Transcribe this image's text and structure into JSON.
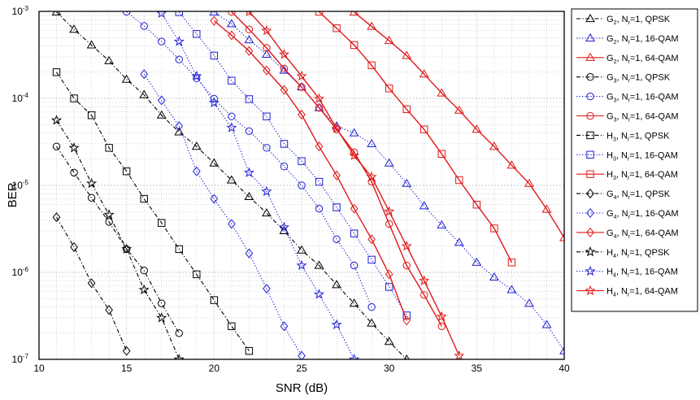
{
  "chart_data": {
    "type": "line",
    "title": "",
    "xlabel": "SNR (dB)",
    "ylabel": "BER",
    "xlim": [
      10,
      40
    ],
    "ylim": [
      1e-07,
      0.001
    ],
    "yscale": "log",
    "grid": true,
    "legend_position": "outside-right",
    "x_ticks": [
      "10",
      "15",
      "20",
      "25",
      "30",
      "35",
      "40"
    ],
    "y_ticks": [
      {
        "base": "10",
        "exp": "-7"
      },
      {
        "base": "10",
        "exp": "-6"
      },
      {
        "base": "10",
        "exp": "-5"
      },
      {
        "base": "10",
        "exp": "-4"
      },
      {
        "base": "10",
        "exp": "-3"
      }
    ],
    "series": [
      {
        "name": "G2, Nr=1, QPSK",
        "label": {
          "pre": "G",
          "sub1": "2",
          "mid": ", N",
          "sub2": "r",
          "post": "=1, QPSK"
        },
        "color": "#000000",
        "marker": "triangle",
        "dash": "dashdot",
        "x": [
          11,
          12,
          13,
          14,
          15,
          16,
          17,
          18,
          19,
          20,
          21,
          22,
          23,
          24,
          25,
          26,
          27,
          28,
          29,
          30,
          31
        ],
        "y": [
          0.00098,
          0.00062,
          0.00041,
          0.00027,
          0.000165,
          0.00011,
          6.4e-05,
          4.1e-05,
          2.8e-05,
          1.8e-05,
          1.15e-05,
          7.4e-06,
          4.8e-06,
          3e-06,
          1.8e-06,
          1.2e-06,
          7.2e-07,
          4.4e-07,
          2.6e-07,
          1.6e-07,
          1e-07
        ]
      },
      {
        "name": "G2, Nr=1, 16-QAM",
        "label": {
          "pre": "G",
          "sub1": "2",
          "mid": ", N",
          "sub2": "r",
          "post": "=1, 16-QAM"
        },
        "color": "#1f1fd6",
        "marker": "triangle",
        "dash": "dotted",
        "x": [
          20,
          21,
          22,
          23,
          24,
          25,
          26,
          27,
          28,
          29,
          30,
          31,
          32,
          33,
          34,
          35,
          36,
          37,
          38,
          39,
          40
        ],
        "y": [
          0.00098,
          0.00072,
          0.00047,
          0.00032,
          0.00021,
          0.000135,
          7.8e-05,
          4.8e-05,
          4e-05,
          3e-05,
          1.8e-05,
          1.05e-05,
          5.8e-06,
          3.5e-06,
          2.2e-06,
          1.3e-06,
          8.8e-07,
          6.3e-07,
          4.4e-07,
          2.5e-07,
          1.25e-07
        ]
      },
      {
        "name": "G2, Nr=1, 64-QAM",
        "label": {
          "pre": "G",
          "sub1": "2",
          "mid": ", N",
          "sub2": "r",
          "post": "=1, 64-QAM"
        },
        "color": "#e01818",
        "marker": "triangle",
        "dash": "solid",
        "x": [
          28,
          29,
          30,
          31,
          32,
          33,
          34,
          35,
          36,
          37,
          38,
          39,
          40
        ],
        "y": [
          0.00098,
          0.00067,
          0.00046,
          0.00031,
          0.00019,
          0.000115,
          7.3e-05,
          4.4e-05,
          2.8e-05,
          1.7e-05,
          1.05e-05,
          5.3e-06,
          2.5e-06
        ]
      },
      {
        "name": "G3, Nr=1, QPSK",
        "label": {
          "pre": "G",
          "sub1": "3",
          "mid": ", N",
          "sub2": "r",
          "post": "=1, QPSK"
        },
        "color": "#000000",
        "marker": "circle",
        "dash": "dashdot",
        "x": [
          11,
          12,
          13,
          14,
          15,
          16,
          17,
          18
        ],
        "y": [
          2.8e-05,
          1.4e-05,
          7.2e-06,
          3.8e-06,
          1.85e-06,
          1.05e-06,
          4.4e-07,
          2e-07
        ]
      },
      {
        "name": "G3, Nr=1, 16-QAM",
        "label": {
          "pre": "G",
          "sub1": "3",
          "mid": ", N",
          "sub2": "r",
          "post": "=1, 16-QAM"
        },
        "color": "#1f1fd6",
        "marker": "circle",
        "dash": "dotted",
        "x": [
          15,
          16,
          17,
          18,
          19,
          20,
          21,
          22,
          23,
          24,
          25,
          26,
          27,
          28,
          29
        ],
        "y": [
          0.00099,
          0.00068,
          0.00045,
          0.00028,
          0.00017,
          9.9e-05,
          6.2e-05,
          4.2e-05,
          2.7e-05,
          1.65e-05,
          1e-05,
          5.4e-06,
          2.4e-06,
          1.2e-06,
          4e-07
        ]
      },
      {
        "name": "G3, Nr=1, 64-QAM",
        "label": {
          "pre": "G",
          "sub1": "3",
          "mid": ", N",
          "sub2": "r",
          "post": "=1, 64-QAM"
        },
        "color": "#e01818",
        "marker": "circle",
        "dash": "solid",
        "x": [
          21,
          22,
          23,
          24,
          25,
          26,
          27,
          28,
          29,
          30,
          31,
          32,
          33
        ],
        "y": [
          0.00099,
          0.00062,
          0.00038,
          0.00022,
          0.000135,
          7.8e-05,
          4.4e-05,
          2.4e-05,
          1.1e-05,
          3.6e-06,
          1.2e-06,
          5.5e-07,
          2.4e-07
        ]
      },
      {
        "name": "H3, Nr=1, QPSK",
        "label": {
          "pre": "H",
          "sub1": "3",
          "mid": ", N",
          "sub2": "r",
          "post": "=1, QPSK"
        },
        "color": "#000000",
        "marker": "square",
        "dash": "dashdot",
        "x": [
          11,
          12,
          13,
          14,
          15,
          16,
          17,
          18,
          19,
          20,
          21,
          22
        ],
        "y": [
          0.0002,
          0.0001,
          6.4e-05,
          2.7e-05,
          1.45e-05,
          7e-06,
          3.7e-06,
          1.85e-06,
          9.5e-07,
          4.8e-07,
          2.4e-07,
          1.25e-07
        ]
      },
      {
        "name": "H3, Nr=1, 16-QAM",
        "label": {
          "pre": "H",
          "sub1": "3",
          "mid": ", N",
          "sub2": "r",
          "post": "=1, 16-QAM"
        },
        "color": "#1f1fd6",
        "marker": "square",
        "dash": "dotted",
        "x": [
          18,
          19,
          20,
          21,
          22,
          23,
          24,
          25,
          26,
          27,
          28,
          29,
          30,
          31
        ],
        "y": [
          0.00098,
          0.00055,
          0.00031,
          0.00016,
          9.8e-05,
          6.2e-05,
          3e-05,
          1.9e-05,
          1.1e-05,
          5.6e-06,
          2.8e-06,
          1.4e-06,
          6.8e-07,
          3.2e-07
        ]
      },
      {
        "name": "H3, Nr=1, 64-QAM",
        "label": {
          "pre": "H",
          "sub1": "3",
          "mid": ", N",
          "sub2": "r",
          "post": "=1, 64-QAM"
        },
        "color": "#e01818",
        "marker": "square",
        "dash": "solid",
        "x": [
          26,
          27,
          28,
          29,
          30,
          31,
          32,
          33,
          34,
          35,
          36,
          37
        ],
        "y": [
          0.00099,
          0.00064,
          0.00041,
          0.00024,
          0.00013,
          7.5e-05,
          4.4e-05,
          2.3e-05,
          1.15e-05,
          6e-06,
          3.2e-06,
          1.3e-06
        ]
      },
      {
        "name": "G4, Nr=1, QPSK",
        "label": {
          "pre": "G",
          "sub1": "4",
          "mid": ", N",
          "sub2": "r",
          "post": "=1, QPSK"
        },
        "color": "#000000",
        "marker": "diamond",
        "dash": "dashdot",
        "x": [
          11,
          12,
          13,
          14,
          15
        ],
        "y": [
          4.3e-06,
          1.95e-06,
          7.5e-07,
          3.7e-07,
          1.25e-07
        ]
      },
      {
        "name": "G4, Nr=1, 16-QAM",
        "label": {
          "pre": "G",
          "sub1": "4",
          "mid": ", N",
          "sub2": "r",
          "post": "=1, 16-QAM"
        },
        "color": "#1f1fd6",
        "marker": "diamond",
        "dash": "dotted",
        "x": [
          16,
          17,
          18,
          19,
          20,
          21,
          22,
          23,
          24,
          25
        ],
        "y": [
          0.00019,
          9.5e-05,
          4.8e-05,
          1.45e-05,
          7e-06,
          3.6e-06,
          1.65e-06,
          6.5e-07,
          2.4e-07,
          1.1e-07
        ]
      },
      {
        "name": "G4, Nr=1, 64-QAM",
        "label": {
          "pre": "G",
          "sub1": "4",
          "mid": ", N",
          "sub2": "r",
          "post": "=1, 64-QAM"
        },
        "color": "#e01818",
        "marker": "diamond",
        "dash": "solid",
        "x": [
          20,
          21,
          22,
          23,
          24,
          25,
          26,
          27,
          28,
          29,
          30,
          31
        ],
        "y": [
          0.00078,
          0.00053,
          0.00035,
          0.00021,
          0.000125,
          6.5e-05,
          2.8e-05,
          1.3e-05,
          5.4e-06,
          2.4e-06,
          9.5e-07,
          2.8e-07
        ]
      },
      {
        "name": "H4, Nr=1, QPSK",
        "label": {
          "pre": "H",
          "sub1": "4",
          "mid": ", N",
          "sub2": "r",
          "post": "=1, QPSK"
        },
        "color": "#000000",
        "marker": "star",
        "dash": "dashdot",
        "x": [
          11,
          12,
          13,
          14,
          15,
          16,
          17,
          18
        ],
        "y": [
          5.6e-05,
          2.7e-05,
          1.05e-05,
          4.6e-06,
          1.85e-06,
          6.3e-07,
          3e-07,
          1e-07
        ]
      },
      {
        "name": "H4, Nr=1, 16-QAM",
        "label": {
          "pre": "H",
          "sub1": "4",
          "mid": ", N",
          "sub2": "r",
          "post": "=1, 16-QAM"
        },
        "color": "#1f1fd6",
        "marker": "star",
        "dash": "dotted",
        "x": [
          17,
          18,
          19,
          20,
          21,
          22,
          23,
          24,
          25,
          26,
          27,
          28
        ],
        "y": [
          0.00095,
          0.00045,
          0.00018,
          8.9e-05,
          4.6e-05,
          1.4e-05,
          8.5e-06,
          3.3e-06,
          1.2e-06,
          5.6e-07,
          2.5e-07,
          1e-07
        ]
      },
      {
        "name": "H4, Nr=1, 64-QAM",
        "label": {
          "pre": "H",
          "sub1": "4",
          "mid": ", N",
          "sub2": "r",
          "post": "=1, 64-QAM"
        },
        "color": "#e01818",
        "marker": "star",
        "dash": "solid",
        "x": [
          22,
          23,
          24,
          25,
          26,
          27,
          28,
          29,
          30,
          31,
          32,
          33,
          34
        ],
        "y": [
          0.00099,
          0.0006,
          0.00032,
          0.00018,
          9.9e-05,
          4.5e-05,
          2.2e-05,
          1.25e-05,
          5e-06,
          2e-06,
          8e-07,
          3.1e-07,
          1.1e-07
        ]
      }
    ]
  }
}
